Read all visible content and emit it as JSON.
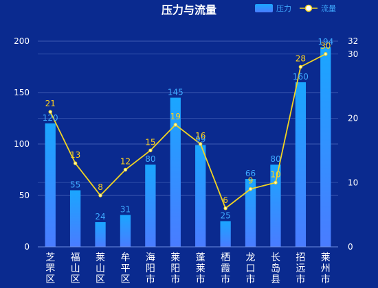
{
  "chart_data": {
    "type": "bar",
    "title": "压力与流量",
    "legend_placement": "top-right",
    "grid": true,
    "categories": [
      "芝罘区",
      "福山区",
      "莱山区",
      "牟平区",
      "海阳市",
      "莱阳市",
      "蓬莱市",
      "栖霞市",
      "龙口市",
      "长岛县",
      "招远市",
      "莱州市"
    ],
    "series": [
      {
        "name": "压力",
        "type": "bar",
        "axis": "left",
        "values": [
          120,
          55,
          24,
          31,
          80,
          145,
          99,
          25,
          66,
          80,
          160,
          194
        ]
      },
      {
        "name": "流量",
        "type": "line",
        "axis": "right",
        "values": [
          21,
          13,
          8,
          12,
          15,
          19,
          16,
          6,
          9,
          10,
          28,
          30
        ]
      }
    ],
    "left_axis": {
      "min": 0,
      "max": 200,
      "ticks": [
        0,
        50,
        100,
        150,
        200
      ]
    },
    "right_axis": {
      "min": 0,
      "max": 32,
      "ticks": [
        0,
        10,
        20,
        30,
        32
      ]
    }
  },
  "colors": {
    "background": "#0a2a8f",
    "bar_top": "#1aa6ff",
    "bar_bottom": "#4a7cff",
    "bar_label": "#3fa9ff",
    "line": "#f2d422",
    "line_point": "#fff6b0",
    "line_label": "#ffd21e",
    "axis_text": "#ffffff",
    "grid": "#3d5bb3"
  }
}
